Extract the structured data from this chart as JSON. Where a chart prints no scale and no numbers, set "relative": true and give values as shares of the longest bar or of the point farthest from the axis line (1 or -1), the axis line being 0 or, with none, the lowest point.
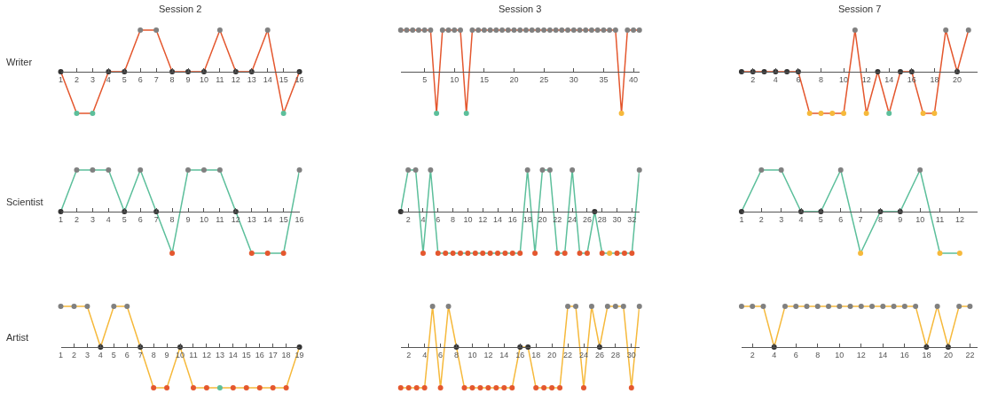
{
  "chart_data": [
    {
      "type": "line",
      "title": "Session 2",
      "ylabel": "Writer",
      "relative": true,
      "marker": "circle",
      "x": [
        1,
        2,
        3,
        4,
        5,
        6,
        7,
        8,
        9,
        10,
        11,
        12,
        13,
        14,
        15,
        16
      ],
      "xlim": [
        1,
        16
      ],
      "xticks": [
        1,
        2,
        3,
        4,
        5,
        6,
        7,
        8,
        9,
        10,
        11,
        12,
        13,
        14,
        15,
        16
      ],
      "series": [
        {
          "color": "#e4572e",
          "values": [
            0,
            -1,
            -1,
            0,
            0,
            1,
            1,
            0,
            0,
            0,
            1,
            0,
            0,
            1,
            -1,
            0
          ],
          "colors": [
            "#333333",
            "#5cbf9b",
            "#5cbf9b",
            "#333333",
            "#333333",
            "#808080",
            "#808080",
            "#333333",
            "#333333",
            "#333333",
            "#808080",
            "#333333",
            "#333333",
            "#808080",
            "#5cbf9b",
            "#333333"
          ]
        }
      ]
    },
    {
      "type": "line",
      "title": "Session 3",
      "relative": true,
      "marker": "circle",
      "x": [
        1,
        2,
        3,
        4,
        5,
        6,
        7,
        8,
        9,
        10,
        11,
        12,
        13,
        14,
        15,
        16,
        17,
        18,
        19,
        20,
        21,
        22,
        23,
        24,
        25,
        26,
        27,
        28,
        29,
        30,
        31,
        32,
        33,
        34,
        35,
        36,
        37,
        38,
        39,
        40,
        41
      ],
      "xlim": [
        1,
        41
      ],
      "xticks": [
        5,
        10,
        15,
        20,
        25,
        30,
        35,
        40
      ],
      "series": [
        {
          "color": "#e4572e",
          "values": [
            1,
            1,
            1,
            1,
            1,
            1,
            -1,
            1,
            1,
            1,
            1,
            -1,
            1,
            1,
            1,
            1,
            1,
            1,
            1,
            1,
            1,
            1,
            1,
            1,
            1,
            1,
            1,
            1,
            1,
            1,
            1,
            1,
            1,
            1,
            1,
            1,
            1,
            -1,
            1,
            1,
            1
          ],
          "colors": [
            "#808080",
            "#808080",
            "#808080",
            "#808080",
            "#808080",
            "#808080",
            "#5cbf9b",
            "#808080",
            "#808080",
            "#808080",
            "#808080",
            "#5cbf9b",
            "#808080",
            "#808080",
            "#808080",
            "#808080",
            "#808080",
            "#808080",
            "#808080",
            "#808080",
            "#808080",
            "#808080",
            "#808080",
            "#808080",
            "#808080",
            "#808080",
            "#808080",
            "#808080",
            "#808080",
            "#808080",
            "#808080",
            "#808080",
            "#808080",
            "#808080",
            "#808080",
            "#808080",
            "#808080",
            "#f6b93b",
            "#808080",
            "#808080",
            "#808080"
          ]
        }
      ]
    },
    {
      "type": "line",
      "title": "Session 7",
      "relative": true,
      "marker": "circle",
      "x": [
        1,
        2,
        3,
        4,
        5,
        6,
        7,
        8,
        9,
        10,
        11,
        12,
        13,
        14,
        15,
        16,
        17,
        18,
        19,
        20,
        21
      ],
      "xlim": [
        1,
        21.8
      ],
      "xticks": [
        2,
        4,
        6,
        8,
        10,
        12,
        14,
        16,
        18,
        20
      ],
      "series": [
        {
          "color": "#e4572e",
          "values": [
            0,
            0,
            0,
            0,
            0,
            0,
            -1,
            -1,
            -1,
            -1,
            1,
            -1,
            0,
            -1,
            0,
            0,
            -1,
            -1,
            1,
            0,
            1
          ],
          "colors": [
            "#333333",
            "#333333",
            "#333333",
            "#333333",
            "#333333",
            "#333333",
            "#f6b93b",
            "#f6b93b",
            "#f6b93b",
            "#f6b93b",
            "#808080",
            "#f6b93b",
            "#333333",
            "#5cbf9b",
            "#333333",
            "#333333",
            "#f6b93b",
            "#f6b93b",
            "#808080",
            "#333333",
            "#808080"
          ]
        }
      ]
    },
    {
      "type": "line",
      "ylabel": "Scientist",
      "relative": true,
      "marker": "circle",
      "x": [
        1,
        2,
        3,
        4,
        5,
        6,
        7,
        8,
        9,
        10,
        11,
        12,
        13,
        14,
        15,
        16
      ],
      "xlim": [
        1,
        16
      ],
      "xticks": [
        1,
        2,
        3,
        4,
        5,
        6,
        7,
        8,
        9,
        10,
        11,
        12,
        13,
        14,
        15,
        16
      ],
      "series": [
        {
          "color": "#5cbf9b",
          "values": [
            0,
            1,
            1,
            1,
            0,
            1,
            0,
            -1,
            1,
            1,
            1,
            0,
            -1,
            -1,
            -1,
            1
          ],
          "colors": [
            "#333333",
            "#808080",
            "#808080",
            "#808080",
            "#333333",
            "#808080",
            "#333333",
            "#e4572e",
            "#808080",
            "#808080",
            "#808080",
            "#333333",
            "#e4572e",
            "#e4572e",
            "#e4572e",
            "#808080"
          ]
        }
      ]
    },
    {
      "type": "line",
      "relative": true,
      "marker": "circle",
      "x": [
        1,
        2,
        3,
        4,
        5,
        6,
        7,
        8,
        9,
        10,
        11,
        12,
        13,
        14,
        15,
        16,
        17,
        18,
        19,
        20,
        21,
        22,
        23,
        24,
        25,
        26,
        27,
        28,
        29,
        30,
        31,
        32,
        33
      ],
      "xlim": [
        1,
        33
      ],
      "xticks": [
        2,
        4,
        6,
        8,
        10,
        12,
        14,
        16,
        18,
        20,
        22,
        24,
        26,
        28,
        30,
        32
      ],
      "series": [
        {
          "color": "#5cbf9b",
          "values": [
            0,
            1,
            1,
            -1,
            1,
            -1,
            -1,
            -1,
            -1,
            -1,
            -1,
            -1,
            -1,
            -1,
            -1,
            -1,
            -1,
            1,
            -1,
            1,
            1,
            -1,
            -1,
            1,
            -1,
            -1,
            0,
            -1,
            -1,
            -1,
            -1,
            -1,
            1
          ],
          "colors": [
            "#333333",
            "#808080",
            "#808080",
            "#e4572e",
            "#808080",
            "#e4572e",
            "#e4572e",
            "#e4572e",
            "#e4572e",
            "#e4572e",
            "#e4572e",
            "#e4572e",
            "#e4572e",
            "#e4572e",
            "#e4572e",
            "#e4572e",
            "#e4572e",
            "#808080",
            "#e4572e",
            "#808080",
            "#808080",
            "#e4572e",
            "#e4572e",
            "#808080",
            "#e4572e",
            "#e4572e",
            "#333333",
            "#e4572e",
            "#f6b93b",
            "#e4572e",
            "#e4572e",
            "#e4572e",
            "#808080"
          ]
        }
      ]
    },
    {
      "type": "line",
      "relative": true,
      "marker": "circle",
      "x": [
        1,
        2,
        3,
        4,
        5,
        6,
        7,
        8,
        9,
        10,
        11,
        12
      ],
      "xlim": [
        1,
        12.9
      ],
      "xticks": [
        1,
        2,
        3,
        4,
        5,
        6,
        7,
        8,
        9,
        10,
        11,
        12
      ],
      "series": [
        {
          "color": "#5cbf9b",
          "values": [
            0,
            1,
            1,
            0,
            0,
            1,
            -1,
            0,
            0,
            1,
            -1,
            -1
          ],
          "colors": [
            "#333333",
            "#808080",
            "#808080",
            "#333333",
            "#333333",
            "#808080",
            "#f6b93b",
            "#333333",
            "#333333",
            "#808080",
            "#f6b93b",
            "#f6b93b"
          ]
        }
      ]
    },
    {
      "type": "line",
      "ylabel": "Artist",
      "relative": true,
      "marker": "circle",
      "x": [
        1,
        2,
        3,
        4,
        5,
        6,
        7,
        8,
        9,
        10,
        11,
        12,
        13,
        14,
        15,
        16,
        17,
        18,
        19
      ],
      "xlim": [
        1,
        19
      ],
      "xticks": [
        1,
        2,
        3,
        4,
        5,
        6,
        7,
        8,
        9,
        10,
        11,
        12,
        13,
        14,
        15,
        16,
        17,
        18,
        19
      ],
      "series": [
        {
          "color": "#f6b93b",
          "values": [
            1,
            1,
            1,
            0,
            1,
            1,
            0,
            -1,
            -1,
            0,
            -1,
            -1,
            -1,
            -1,
            -1,
            -1,
            -1,
            -1,
            0
          ],
          "colors": [
            "#808080",
            "#808080",
            "#808080",
            "#333333",
            "#808080",
            "#808080",
            "#333333",
            "#e4572e",
            "#e4572e",
            "#333333",
            "#e4572e",
            "#e4572e",
            "#5cbf9b",
            "#e4572e",
            "#e4572e",
            "#e4572e",
            "#e4572e",
            "#e4572e",
            "#333333"
          ]
        }
      ]
    },
    {
      "type": "line",
      "relative": true,
      "marker": "circle",
      "x": [
        1,
        2,
        3,
        4,
        5,
        6,
        7,
        8,
        9,
        10,
        11,
        12,
        13,
        14,
        15,
        16,
        17,
        18,
        19,
        20,
        21,
        22,
        23,
        24,
        25,
        26,
        27,
        28,
        29,
        30,
        31
      ],
      "xlim": [
        1,
        31
      ],
      "xticks": [
        2,
        4,
        6,
        8,
        10,
        12,
        14,
        16,
        18,
        20,
        22,
        24,
        26,
        28,
        30
      ],
      "series": [
        {
          "color": "#f6b93b",
          "values": [
            -1,
            -1,
            -1,
            -1,
            1,
            -1,
            1,
            0,
            -1,
            -1,
            -1,
            -1,
            -1,
            -1,
            -1,
            0,
            0,
            -1,
            -1,
            -1,
            -1,
            1,
            1,
            -1,
            1,
            0,
            1,
            1,
            1,
            -1,
            1
          ],
          "colors": [
            "#e4572e",
            "#e4572e",
            "#e4572e",
            "#e4572e",
            "#808080",
            "#e4572e",
            "#808080",
            "#333333",
            "#e4572e",
            "#e4572e",
            "#e4572e",
            "#e4572e",
            "#e4572e",
            "#e4572e",
            "#e4572e",
            "#333333",
            "#333333",
            "#e4572e",
            "#e4572e",
            "#e4572e",
            "#e4572e",
            "#808080",
            "#808080",
            "#e4572e",
            "#808080",
            "#333333",
            "#808080",
            "#808080",
            "#808080",
            "#e4572e",
            "#808080"
          ]
        }
      ]
    },
    {
      "type": "line",
      "relative": true,
      "marker": "circle",
      "x": [
        1,
        2,
        3,
        4,
        5,
        6,
        7,
        8,
        9,
        10,
        11,
        12,
        13,
        14,
        15,
        16,
        17,
        18,
        19,
        20,
        21,
        22
      ],
      "xlim": [
        1,
        22.7
      ],
      "xticks": [
        2,
        4,
        6,
        8,
        10,
        12,
        14,
        16,
        18,
        20,
        22
      ],
      "series": [
        {
          "color": "#f6b93b",
          "values": [
            1,
            1,
            1,
            0,
            1,
            1,
            1,
            1,
            1,
            1,
            1,
            1,
            1,
            1,
            1,
            1,
            1,
            0,
            1,
            0,
            1,
            1
          ],
          "colors": [
            "#808080",
            "#808080",
            "#808080",
            "#333333",
            "#808080",
            "#808080",
            "#808080",
            "#808080",
            "#808080",
            "#808080",
            "#808080",
            "#808080",
            "#808080",
            "#808080",
            "#808080",
            "#808080",
            "#808080",
            "#333333",
            "#808080",
            "#333333",
            "#808080",
            "#808080"
          ]
        }
      ]
    }
  ]
}
